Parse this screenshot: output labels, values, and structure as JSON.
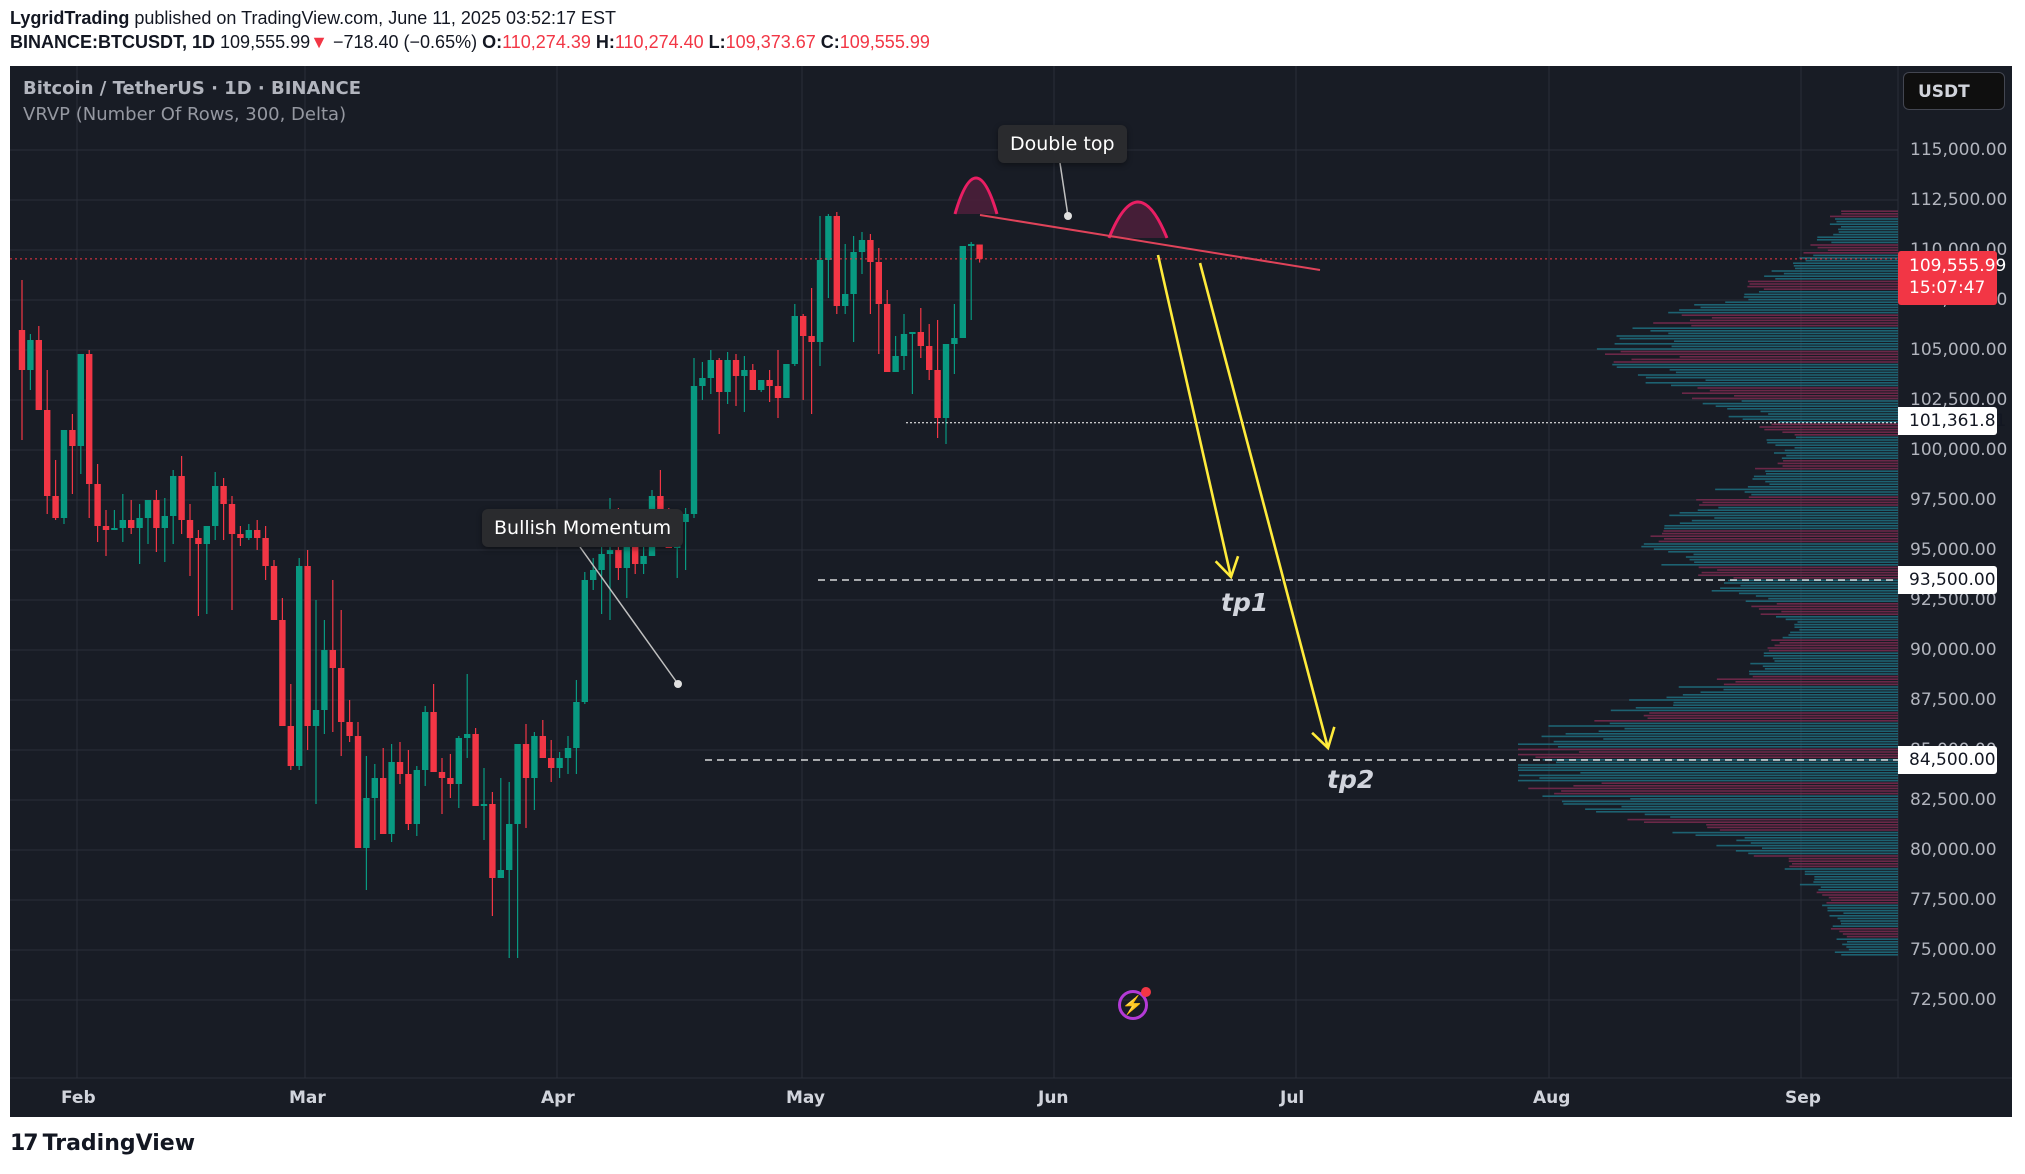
{
  "header": {
    "author": "LygridTrading",
    "published": "published on TradingView.com, June 11, 2025 03:52:17 EST",
    "symbol": "BINANCE:BTCUSDT, 1D",
    "last": "109,555.99",
    "change_arrow": "▼",
    "change": "−718.40 (−0.65%)",
    "o_label": "O:",
    "o": "110,274.39",
    "h_label": "H:",
    "h": "110,274.40",
    "l_label": "L:",
    "l": "109,373.67",
    "c_label": "C:",
    "c": "109,555.99"
  },
  "legend": {
    "title": "Bitcoin / TetherUS · 1D · BINANCE",
    "indicator": "VRVP (Number Of Rows, 300, Delta)"
  },
  "currency_button": "USDT",
  "price_axis": [
    "115,000.00",
    "112,500.00",
    "110,000.00",
    "107,500.00",
    "105,000.00",
    "102,500.00",
    "100,000.00",
    "97,500.00",
    "95,000.00",
    "92,500.00",
    "90,000.00",
    "87,500.00",
    "85,000.00",
    "82,500.00",
    "80,000.00",
    "77,500.00",
    "75,000.00",
    "72,500.00"
  ],
  "price_tags": {
    "last_price": "109,555.99",
    "countdown": "15:07:47",
    "level_low": "101,361.81",
    "tp1_level": "93,500.00",
    "tp2_level": "84,500.00"
  },
  "time_axis": [
    "Feb",
    "Mar",
    "Apr",
    "May",
    "Jun",
    "Jul",
    "Aug",
    "Sep"
  ],
  "annotations": {
    "double_top": "Double top",
    "bullish": "Bullish Momentum",
    "tp1": "tp1",
    "tp2": "tp2"
  },
  "logo": {
    "mark": "17",
    "text": "TradingView"
  },
  "colors": {
    "up": "#089981",
    "down": "#f23645",
    "background": "#181c25",
    "grid": "#2a2e39",
    "arrow": "#ffeb3b",
    "arc": "#e91e63",
    "trendline": "#e0435a",
    "vp_up": "#1f6f80",
    "vp_down": "#7a2a4f"
  },
  "chart_data": {
    "type": "candlestick",
    "title": "Bitcoin / TetherUS · 1D · BINANCE",
    "xlabel": "",
    "ylabel": "USDT",
    "ylim": [
      71500,
      117000
    ],
    "grid": true,
    "x_ticks": [
      "Feb",
      "Mar",
      "Apr",
      "May",
      "Jun",
      "Jul",
      "Aug",
      "Sep"
    ],
    "y_ticks": [
      72500,
      75000,
      77500,
      80000,
      82500,
      85000,
      87500,
      90000,
      92500,
      95000,
      97500,
      100000,
      102500,
      105000,
      107500,
      110000,
      112500,
      115000
    ],
    "start_x": 12,
    "bar_spacing": 8.4,
    "candles": [
      [
        106000,
        108500,
        100500,
        104000
      ],
      [
        104000,
        105800,
        103000,
        105500
      ],
      [
        105500,
        106200,
        102000,
        102000
      ],
      [
        102000,
        104000,
        96800,
        97700
      ],
      [
        97700,
        99500,
        96500,
        96600
      ],
      [
        96600,
        99000,
        96300,
        101000
      ],
      [
        101000,
        101800,
        97800,
        100200
      ],
      [
        100200,
        104800,
        98800,
        104800
      ],
      [
        104800,
        105000,
        96600,
        98300
      ],
      [
        98300,
        99300,
        95400,
        96200
      ],
      [
        96200,
        97000,
        94700,
        96000
      ],
      [
        96000,
        97000,
        96000,
        96100
      ],
      [
        96100,
        97800,
        95400,
        96500
      ],
      [
        96500,
        97500,
        95800,
        96100
      ],
      [
        96100,
        97300,
        94300,
        96600
      ],
      [
        96600,
        97400,
        95300,
        97500
      ],
      [
        97500,
        98000,
        94900,
        96100
      ],
      [
        96100,
        97600,
        94400,
        96700
      ],
      [
        96700,
        99000,
        95300,
        98700
      ],
      [
        98700,
        99700,
        95800,
        96500
      ],
      [
        96500,
        97300,
        93700,
        95600
      ],
      [
        95600,
        96000,
        91700,
        95300
      ],
      [
        95300,
        95500,
        91800,
        96200
      ],
      [
        96200,
        98900,
        95500,
        98200
      ],
      [
        98200,
        98600,
        95500,
        97300
      ],
      [
        97300,
        97700,
        92000,
        95800
      ],
      [
        95800,
        96200,
        95200,
        95600
      ],
      [
        95600,
        96300,
        95500,
        96000
      ],
      [
        96000,
        96500,
        95000,
        95600
      ],
      [
        95600,
        96200,
        93500,
        94200
      ],
      [
        94200,
        94500,
        91500,
        91500
      ],
      [
        91500,
        92600,
        86500,
        86200
      ],
      [
        86200,
        88300,
        84000,
        84200
      ],
      [
        84200,
        94600,
        84000,
        94200
      ],
      [
        94200,
        95000,
        85000,
        86200
      ],
      [
        86200,
        92500,
        82300,
        87000
      ],
      [
        87000,
        91500,
        85800,
        90000
      ],
      [
        90000,
        93500,
        85900,
        89100
      ],
      [
        89100,
        92000,
        84700,
        86400
      ],
      [
        86400,
        87500,
        85400,
        85700
      ],
      [
        85700,
        86400,
        82000,
        80100
      ],
      [
        80100,
        84700,
        78000,
        82600
      ],
      [
        82600,
        84300,
        80500,
        83600
      ],
      [
        83600,
        85100,
        81900,
        80800
      ],
      [
        80800,
        85300,
        80400,
        84400
      ],
      [
        84400,
        85400,
        83300,
        83800
      ],
      [
        83800,
        85000,
        81000,
        81300
      ],
      [
        81300,
        84200,
        80700,
        84000
      ],
      [
        84000,
        87200,
        83200,
        86900
      ],
      [
        86900,
        88300,
        84600,
        83900
      ],
      [
        83900,
        84600,
        81800,
        83600
      ],
      [
        83600,
        84800,
        82600,
        83300
      ],
      [
        83300,
        85700,
        82100,
        85600
      ],
      [
        85600,
        88800,
        84600,
        85800
      ],
      [
        85800,
        86100,
        82400,
        82200
      ],
      [
        82200,
        84100,
        80500,
        82300
      ],
      [
        82300,
        82900,
        76700,
        78600
      ],
      [
        78600,
        83600,
        79000,
        79000
      ],
      [
        79000,
        83400,
        74600,
        81300
      ],
      [
        81300,
        84500,
        74600,
        85300
      ],
      [
        85300,
        86300,
        81100,
        83600
      ],
      [
        83600,
        85900,
        82000,
        85700
      ],
      [
        85700,
        86500,
        84700,
        84600
      ],
      [
        84600,
        85500,
        83400,
        84100
      ],
      [
        84100,
        84900,
        83600,
        84600
      ],
      [
        84600,
        85700,
        83800,
        85100
      ],
      [
        85100,
        88500,
        83800,
        87400
      ],
      [
        87400,
        93900,
        87300,
        93500
      ],
      [
        93500,
        94600,
        93000,
        94000
      ],
      [
        94000,
        95500,
        91800,
        94800
      ],
      [
        94800,
        97600,
        91500,
        95000
      ],
      [
        95000,
        97100,
        93500,
        94100
      ],
      [
        94100,
        96000,
        92600,
        96800
      ],
      [
        96800,
        95800,
        93800,
        94300
      ],
      [
        94300,
        96500,
        93800,
        94700
      ],
      [
        94700,
        98000,
        96000,
        97700
      ],
      [
        97700,
        99000,
        96900,
        96800
      ],
      [
        96800,
        97100,
        95100,
        95100
      ],
      [
        95100,
        96900,
        93600,
        96400
      ],
      [
        96400,
        97100,
        94000,
        96800
      ],
      [
        96800,
        104600,
        96600,
        103200
      ],
      [
        103200,
        104400,
        102500,
        103600
      ],
      [
        103600,
        105000,
        102800,
        104500
      ],
      [
        104500,
        104600,
        100800,
        102900
      ],
      [
        102900,
        104900,
        102300,
        104500
      ],
      [
        104500,
        104800,
        102200,
        103700
      ],
      [
        103700,
        104700,
        101900,
        104000
      ],
      [
        104000,
        104300,
        103500,
        103000
      ],
      [
        103000,
        103400,
        102900,
        103500
      ],
      [
        103500,
        104000,
        102400,
        103200
      ],
      [
        103200,
        105000,
        101600,
        102600
      ],
      [
        102600,
        104300,
        102800,
        104300
      ],
      [
        104300,
        107300,
        104200,
        106700
      ],
      [
        106700,
        106800,
        102500,
        105700
      ],
      [
        105700,
        108100,
        101800,
        105400
      ],
      [
        105400,
        111700,
        104200,
        109500
      ],
      [
        109500,
        111800,
        107600,
        111700
      ],
      [
        111700,
        111900,
        106800,
        107200
      ],
      [
        107200,
        110300,
        106800,
        107800
      ],
      [
        107800,
        110700,
        105400,
        109900
      ],
      [
        109900,
        110900,
        108800,
        110500
      ],
      [
        110500,
        110800,
        106800,
        109400
      ],
      [
        109400,
        110100,
        104800,
        107300
      ],
      [
        107300,
        108000,
        105600,
        103900
      ],
      [
        103900,
        105700,
        104000,
        104700
      ],
      [
        104700,
        106800,
        104000,
        105800
      ],
      [
        105800,
        105800,
        102800,
        105900
      ],
      [
        105900,
        107100,
        104600,
        105200
      ],
      [
        105200,
        106300,
        103500,
        104000
      ],
      [
        104000,
        106500,
        100600,
        101600
      ],
      [
        101600,
        104400,
        100300,
        105300
      ],
      [
        105300,
        107300,
        103800,
        105600
      ],
      [
        105600,
        109700,
        105600,
        110200
      ],
      [
        110200,
        110400,
        106500,
        110300
      ],
      [
        110274,
        110274,
        109373,
        109556
      ]
    ],
    "annotations": [
      {
        "type": "text",
        "text": "Double top"
      },
      {
        "type": "text",
        "text": "Bullish Momentum"
      },
      {
        "type": "hline",
        "value": 101361.81
      },
      {
        "type": "hline",
        "value": 93500,
        "label": "tp1"
      },
      {
        "type": "hline",
        "value": 84500,
        "label": "tp2"
      },
      {
        "type": "trendline",
        "from": [
          111800,
          "May 22"
        ],
        "to": [
          109200,
          "Jul 1"
        ]
      }
    ]
  }
}
